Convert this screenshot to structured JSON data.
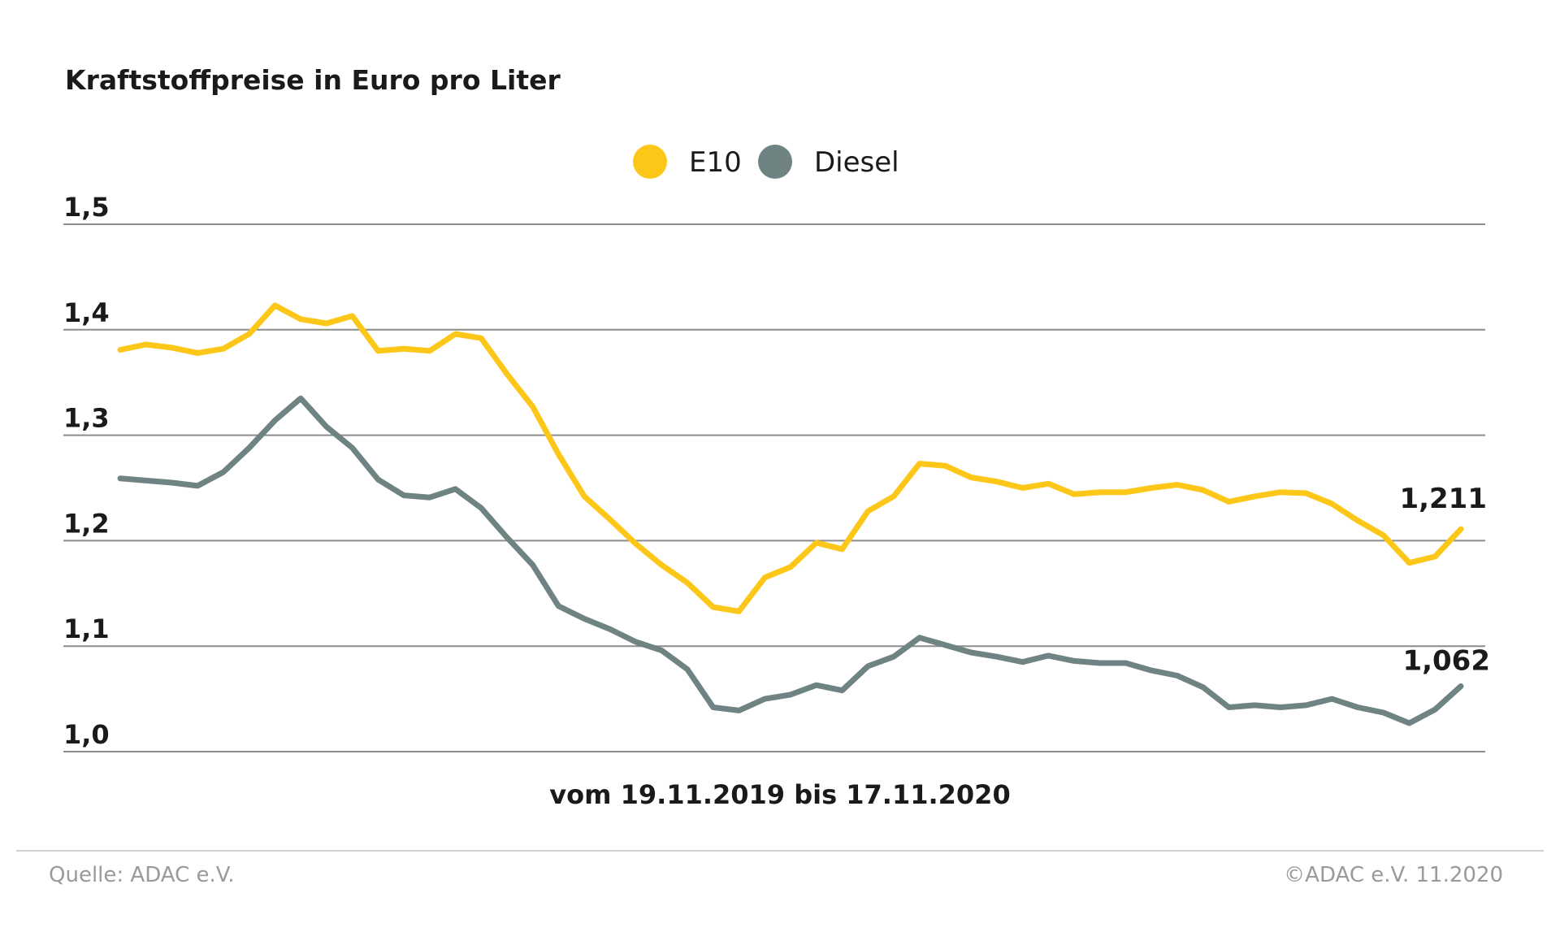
{
  "title": "Kraftstoffpreise in Euro pro Liter",
  "period": "vom 19.11.2019 bis 17.11.2020",
  "footer": {
    "source": "Quelle: ADAC e.V.",
    "copyright": "©ADAC e.V. 11.2020"
  },
  "colors": {
    "e10": "#fcc718",
    "diesel": "#6f8482",
    "grid": "#8c8c8c",
    "text": "#1a1a1a",
    "footer_text": "#9a9a9a"
  },
  "chart_data": {
    "type": "line",
    "title": "Kraftstoffpreise in Euro pro Liter",
    "xlabel": "vom 19.11.2019 bis 17.11.2020",
    "ylabel": "",
    "ylim": [
      1.0,
      1.5
    ],
    "yticks": [
      1.0,
      1.1,
      1.2,
      1.3,
      1.4,
      1.5
    ],
    "ytick_labels": [
      "1,0",
      "1,1",
      "1,2",
      "1,3",
      "1,4",
      "1,5"
    ],
    "grid": true,
    "legend_position": "top-center",
    "legend": [
      "E10",
      "Diesel"
    ],
    "end_labels": [
      "1,211",
      "1,062"
    ],
    "series": [
      {
        "name": "E10",
        "color": "#fcc718",
        "values": [
          1.381,
          1.386,
          1.383,
          1.378,
          1.382,
          1.396,
          1.423,
          1.41,
          1.406,
          1.413,
          1.38,
          1.382,
          1.38,
          1.396,
          1.392,
          1.358,
          1.327,
          1.282,
          1.242,
          1.22,
          1.197,
          1.177,
          1.16,
          1.137,
          1.133,
          1.165,
          1.175,
          1.198,
          1.192,
          1.228,
          1.242,
          1.273,
          1.271,
          1.26,
          1.256,
          1.25,
          1.254,
          1.244,
          1.246,
          1.246,
          1.25,
          1.253,
          1.248,
          1.237,
          1.242,
          1.246,
          1.245,
          1.235,
          1.219,
          1.205,
          1.179,
          1.185,
          1.211
        ]
      },
      {
        "name": "Diesel",
        "color": "#6f8482",
        "values": [
          1.259,
          1.257,
          1.255,
          1.252,
          1.265,
          1.288,
          1.314,
          1.335,
          1.308,
          1.288,
          1.258,
          1.243,
          1.241,
          1.249,
          1.231,
          1.203,
          1.177,
          1.138,
          1.126,
          1.116,
          1.104,
          1.096,
          1.078,
          1.042,
          1.039,
          1.05,
          1.054,
          1.063,
          1.058,
          1.081,
          1.09,
          1.108,
          1.101,
          1.094,
          1.09,
          1.085,
          1.091,
          1.086,
          1.084,
          1.084,
          1.077,
          1.072,
          1.061,
          1.042,
          1.044,
          1.042,
          1.044,
          1.05,
          1.042,
          1.037,
          1.027,
          1.04,
          1.062
        ]
      }
    ]
  }
}
